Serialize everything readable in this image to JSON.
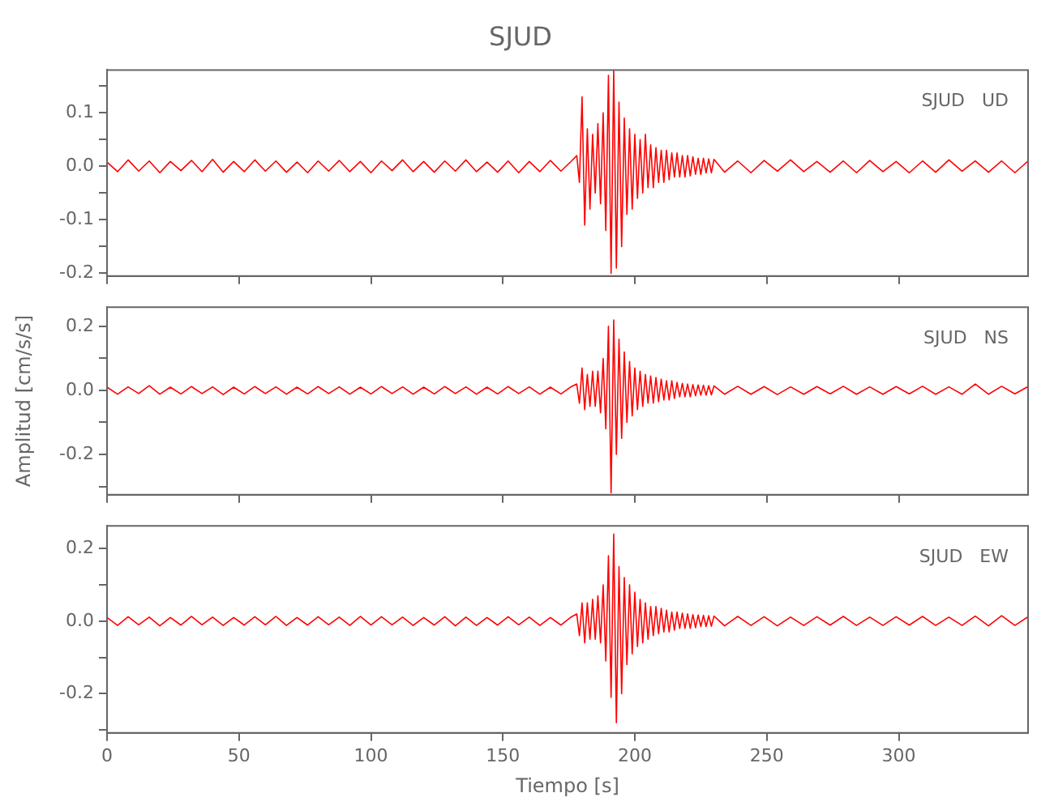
{
  "chart_data": [
    {
      "type": "line",
      "title": "SJUD",
      "annotations": [
        "SJUD   UD"
      ],
      "tick_labels": "y",
      "marker": "none",
      "color": "#ff0000",
      "xlim": [
        0,
        349
      ],
      "xticks": [
        {
          "value": 0,
          "label": null
        },
        {
          "value": 50,
          "label": null
        },
        {
          "value": 100,
          "label": null
        },
        {
          "value": 150,
          "label": null
        },
        {
          "value": 200,
          "label": null
        },
        {
          "value": 250,
          "label": null
        },
        {
          "value": 300,
          "label": null
        }
      ],
      "ylim": [
        -0.205,
        0.18
      ],
      "yticks": [
        {
          "value": -0.2,
          "label": "-0.2"
        },
        {
          "value": -0.15,
          "label": null
        },
        -0.1,
        {
          "value": -0.05,
          "label": null
        },
        {
          "value": 0,
          "label": "0.0"
        },
        {
          "value": 0.05,
          "label": null
        },
        0.1,
        {
          "value": 0.15,
          "label": null
        }
      ],
      "x": [
        0,
        4,
        8,
        12,
        16,
        20,
        24,
        28,
        32,
        36,
        40,
        44,
        48,
        52,
        56,
        60,
        64,
        68,
        72,
        76,
        80,
        84,
        88,
        92,
        96,
        100,
        104,
        108,
        112,
        116,
        120,
        124,
        128,
        132,
        136,
        140,
        144,
        148,
        152,
        156,
        160,
        164,
        168,
        172,
        176,
        178,
        179,
        180,
        181,
        182,
        183,
        184,
        185,
        186,
        187,
        188,
        189,
        190,
        191,
        192,
        193,
        194,
        195,
        196,
        197,
        198,
        199,
        200,
        201,
        202,
        203,
        204,
        205,
        206,
        207,
        208,
        209,
        210,
        211,
        212,
        213,
        214,
        215,
        216,
        217,
        218,
        219,
        220,
        221,
        222,
        223,
        224,
        225,
        226,
        227,
        228,
        229,
        230,
        234,
        239,
        244,
        249,
        254,
        259,
        264,
        269,
        274,
        279,
        284,
        289,
        294,
        299,
        304,
        309,
        314,
        319,
        324,
        329,
        334,
        339,
        344,
        349
      ],
      "values": [
        0.008,
        -0.01,
        0.012,
        -0.009,
        0.01,
        -0.012,
        0.009,
        -0.008,
        0.011,
        -0.01,
        0.013,
        -0.011,
        0.009,
        -0.01,
        0.012,
        -0.009,
        0.01,
        -0.011,
        0.008,
        -0.012,
        0.01,
        -0.009,
        0.011,
        -0.01,
        0.009,
        -0.012,
        0.01,
        -0.008,
        0.012,
        -0.01,
        0.009,
        -0.011,
        0.01,
        -0.009,
        0.012,
        -0.01,
        0.008,
        -0.011,
        0.01,
        -0.012,
        0.009,
        -0.01,
        0.011,
        -0.009,
        0.01,
        0.02,
        -0.03,
        0.13,
        -0.11,
        0.07,
        -0.08,
        0.06,
        -0.05,
        0.08,
        -0.07,
        0.1,
        -0.12,
        0.17,
        -0.2,
        0.18,
        -0.19,
        0.12,
        -0.15,
        0.09,
        -0.09,
        0.07,
        -0.08,
        0.06,
        -0.06,
        0.05,
        -0.05,
        0.06,
        -0.04,
        0.04,
        -0.04,
        0.035,
        -0.03,
        0.03,
        -0.03,
        0.03,
        -0.025,
        0.025,
        -0.02,
        0.025,
        -0.02,
        0.02,
        -0.02,
        0.02,
        -0.018,
        0.018,
        -0.015,
        0.015,
        -0.015,
        0.015,
        -0.012,
        0.014,
        -0.012,
        0.013,
        -0.011,
        0.01,
        -0.012,
        0.011,
        -0.009,
        0.012,
        -0.01,
        0.009,
        -0.011,
        0.01,
        -0.012,
        0.011,
        -0.01,
        0.009,
        -0.012,
        0.01,
        -0.011,
        0.012,
        -0.009,
        0.01,
        -0.011,
        0.01,
        -0.012,
        0.01
      ]
    },
    {
      "type": "line",
      "ylabel": "Amplitud [cm/s/s]",
      "annotations": [
        "SJUD   NS"
      ],
      "tick_labels": "y",
      "marker": "none",
      "color": "#ff0000",
      "xlim": [
        0,
        349
      ],
      "xticks": [
        {
          "value": 0,
          "label": null
        },
        {
          "value": 50,
          "label": null
        },
        {
          "value": 100,
          "label": null
        },
        {
          "value": 150,
          "label": null
        },
        {
          "value": 200,
          "label": null
        },
        {
          "value": 250,
          "label": null
        },
        {
          "value": 300,
          "label": null
        }
      ],
      "ylim": [
        -0.326,
        0.26
      ],
      "yticks": [
        {
          "value": -0.3,
          "label": null
        },
        -0.2,
        {
          "value": -0.1,
          "label": null
        },
        {
          "value": 0,
          "label": "0.0"
        },
        {
          "value": 0.1,
          "label": null
        },
        0.2
      ],
      "x": [
        0,
        4,
        8,
        12,
        16,
        20,
        24,
        28,
        32,
        36,
        40,
        44,
        48,
        52,
        56,
        60,
        64,
        68,
        72,
        76,
        80,
        84,
        88,
        92,
        96,
        100,
        104,
        108,
        112,
        116,
        120,
        124,
        128,
        132,
        136,
        140,
        144,
        148,
        152,
        156,
        160,
        164,
        168,
        172,
        176,
        178,
        179,
        180,
        181,
        182,
        183,
        184,
        185,
        186,
        187,
        188,
        189,
        190,
        191,
        192,
        193,
        194,
        195,
        196,
        197,
        198,
        199,
        200,
        201,
        202,
        203,
        204,
        205,
        206,
        207,
        208,
        209,
        210,
        211,
        212,
        213,
        214,
        215,
        216,
        217,
        218,
        219,
        220,
        221,
        222,
        223,
        224,
        225,
        226,
        227,
        228,
        229,
        230,
        234,
        239,
        244,
        249,
        254,
        259,
        264,
        269,
        274,
        279,
        284,
        289,
        294,
        299,
        304,
        309,
        314,
        319,
        324,
        329,
        334,
        339,
        344,
        349
      ],
      "values": [
        0.01,
        -0.012,
        0.011,
        -0.01,
        0.015,
        -0.012,
        0.01,
        -0.011,
        0.012,
        -0.01,
        0.011,
        -0.013,
        0.01,
        -0.011,
        0.012,
        -0.01,
        0.011,
        -0.012,
        0.01,
        -0.011,
        0.012,
        -0.01,
        0.011,
        -0.012,
        0.01,
        -0.011,
        0.012,
        -0.01,
        0.011,
        -0.012,
        0.01,
        -0.011,
        0.012,
        -0.01,
        0.011,
        -0.012,
        0.01,
        -0.011,
        0.012,
        -0.01,
        0.011,
        -0.012,
        0.01,
        -0.011,
        0.012,
        0.02,
        -0.04,
        0.07,
        -0.06,
        0.05,
        -0.05,
        0.06,
        -0.05,
        0.06,
        -0.07,
        0.1,
        -0.12,
        0.2,
        -0.32,
        0.22,
        -0.2,
        0.16,
        -0.15,
        0.12,
        -0.1,
        0.09,
        -0.08,
        0.07,
        -0.06,
        0.06,
        -0.05,
        0.05,
        -0.04,
        0.045,
        -0.04,
        0.04,
        -0.035,
        0.035,
        -0.03,
        0.03,
        -0.03,
        0.03,
        -0.025,
        0.025,
        -0.02,
        0.022,
        -0.02,
        0.02,
        -0.02,
        0.018,
        -0.017,
        0.017,
        -0.015,
        0.016,
        -0.015,
        0.015,
        -0.014,
        0.014,
        -0.012,
        0.013,
        -0.012,
        0.012,
        -0.013,
        0.011,
        -0.012,
        0.012,
        -0.011,
        0.013,
        -0.012,
        0.011,
        -0.012,
        0.012,
        -0.011,
        0.013,
        -0.012,
        0.011,
        -0.012,
        0.02,
        -0.012,
        0.013,
        -0.011,
        0.012
      ]
    },
    {
      "type": "line",
      "xlabel": "Tiempo [s]",
      "annotations": [
        "SJUD   EW"
      ],
      "marker": "none",
      "color": "#ff0000",
      "xlim": [
        0,
        349
      ],
      "xticks": [
        0,
        50,
        100,
        150,
        200,
        250,
        300
      ],
      "ylim": [
        -0.308,
        0.2625
      ],
      "yticks": [
        {
          "value": -0.3,
          "label": null
        },
        -0.2,
        {
          "value": -0.1,
          "label": null
        },
        {
          "value": 0,
          "label": "0.0"
        },
        {
          "value": 0.1,
          "label": null
        },
        0.2
      ],
      "x": [
        0,
        4,
        8,
        12,
        16,
        20,
        24,
        28,
        32,
        36,
        40,
        44,
        48,
        52,
        56,
        60,
        64,
        68,
        72,
        76,
        80,
        84,
        88,
        92,
        96,
        100,
        104,
        108,
        112,
        116,
        120,
        124,
        128,
        132,
        136,
        140,
        144,
        148,
        152,
        156,
        160,
        164,
        168,
        172,
        176,
        178,
        179,
        180,
        181,
        182,
        183,
        184,
        185,
        186,
        187,
        188,
        189,
        190,
        191,
        192,
        193,
        194,
        195,
        196,
        197,
        198,
        199,
        200,
        201,
        202,
        203,
        204,
        205,
        206,
        207,
        208,
        209,
        210,
        211,
        212,
        213,
        214,
        215,
        216,
        217,
        218,
        219,
        220,
        221,
        222,
        223,
        224,
        225,
        226,
        227,
        228,
        229,
        230,
        234,
        239,
        244,
        249,
        254,
        259,
        264,
        269,
        274,
        279,
        284,
        289,
        294,
        299,
        304,
        309,
        314,
        319,
        324,
        329,
        334,
        339,
        344,
        349
      ],
      "values": [
        0.01,
        -0.012,
        0.012,
        -0.01,
        0.011,
        -0.013,
        0.01,
        -0.011,
        0.013,
        -0.01,
        0.011,
        -0.012,
        0.01,
        -0.011,
        0.012,
        -0.01,
        0.013,
        -0.012,
        0.01,
        -0.011,
        0.012,
        -0.01,
        0.011,
        -0.012,
        0.013,
        -0.011,
        0.012,
        -0.01,
        0.011,
        -0.012,
        0.01,
        -0.011,
        0.012,
        -0.013,
        0.011,
        -0.012,
        0.01,
        -0.011,
        0.012,
        -0.01,
        0.011,
        -0.012,
        0.01,
        -0.011,
        0.012,
        0.02,
        -0.04,
        0.05,
        -0.06,
        0.05,
        -0.05,
        0.06,
        -0.05,
        0.07,
        -0.06,
        0.1,
        -0.11,
        0.18,
        -0.21,
        0.24,
        -0.28,
        0.15,
        -0.2,
        0.12,
        -0.12,
        0.1,
        -0.09,
        0.08,
        -0.07,
        0.06,
        -0.06,
        0.05,
        -0.05,
        0.04,
        -0.04,
        0.04,
        -0.035,
        0.035,
        -0.03,
        0.03,
        -0.03,
        0.025,
        -0.025,
        0.025,
        -0.02,
        0.022,
        -0.02,
        0.02,
        -0.02,
        0.018,
        -0.018,
        0.017,
        -0.015,
        0.016,
        -0.015,
        0.015,
        -0.014,
        0.014,
        -0.013,
        0.013,
        -0.012,
        0.012,
        -0.013,
        0.011,
        -0.012,
        0.012,
        -0.011,
        0.013,
        -0.012,
        0.011,
        -0.012,
        0.012,
        -0.011,
        0.013,
        -0.012,
        0.011,
        -0.012,
        0.014,
        -0.013,
        0.015,
        -0.012,
        0.012
      ]
    }
  ]
}
